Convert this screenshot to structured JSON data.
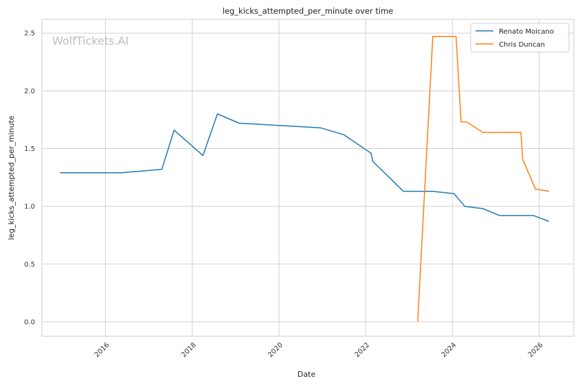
{
  "chart_data": {
    "type": "line",
    "title": "leg_kicks_attempted_per_minute over time",
    "xlabel": "Date",
    "ylabel": "leg_kicks_attempted_per_minute",
    "watermark": "WolfTickets.AI",
    "x_ticks": [
      "2016",
      "2018",
      "2020",
      "2022",
      "2024",
      "2026"
    ],
    "y_ticks": [
      "0.0",
      "0.5",
      "1.0",
      "1.5",
      "2.0",
      "2.5"
    ],
    "xlim": [
      "2014-07-15",
      "2026-10-20"
    ],
    "ylim": [
      -0.125,
      2.62
    ],
    "grid": true,
    "legend_position": "top-right",
    "series": [
      {
        "name": "Renato Moicano",
        "color": "#1f77b4",
        "points": [
          [
            "2014-12-15",
            1.29
          ],
          [
            "2016-05-15",
            1.29
          ],
          [
            "2017-04-20",
            1.32
          ],
          [
            "2017-08-01",
            1.66
          ],
          [
            "2018-04-01",
            1.44
          ],
          [
            "2018-08-01",
            1.8
          ],
          [
            "2019-02-01",
            1.72
          ],
          [
            "2020-12-15",
            1.68
          ],
          [
            "2021-07-01",
            1.62
          ],
          [
            "2022-02-15",
            1.46
          ],
          [
            "2022-03-01",
            1.39
          ],
          [
            "2022-11-15",
            1.13
          ],
          [
            "2023-07-15",
            1.13
          ],
          [
            "2024-01-15",
            1.11
          ],
          [
            "2024-04-15",
            1.0
          ],
          [
            "2024-09-15",
            0.98
          ],
          [
            "2025-02-01",
            0.92
          ],
          [
            "2025-11-15",
            0.92
          ],
          [
            "2026-03-25",
            0.87
          ]
        ]
      },
      {
        "name": "Chris Duncan",
        "color": "#ff7f0e",
        "points": [
          [
            "2023-03-15",
            0.0
          ],
          [
            "2023-07-20",
            2.47
          ],
          [
            "2024-02-01",
            2.47
          ],
          [
            "2024-03-15",
            1.73
          ],
          [
            "2024-05-01",
            1.73
          ],
          [
            "2024-09-15",
            1.64
          ],
          [
            "2025-02-01",
            1.64
          ],
          [
            "2025-08-01",
            1.64
          ],
          [
            "2025-08-15",
            1.41
          ],
          [
            "2025-12-01",
            1.15
          ],
          [
            "2026-03-25",
            1.13
          ]
        ]
      }
    ]
  }
}
